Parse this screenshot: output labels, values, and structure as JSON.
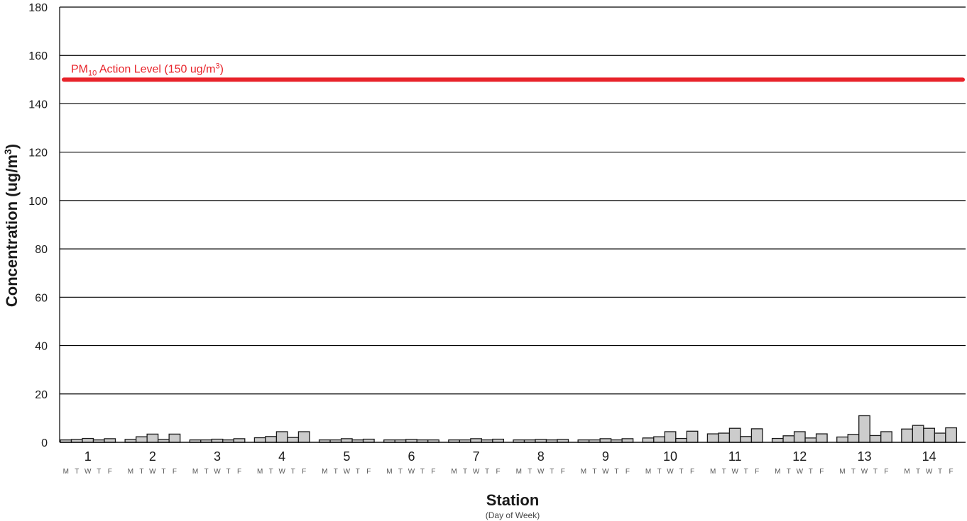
{
  "chart_data": {
    "type": "bar",
    "xlabel": "Station",
    "xlabel_sub": "(Day of Week)",
    "ylabel_main": "Concentration (ug/m",
    "ylabel_sup": "3",
    "ylabel_end": ")",
    "ylim": [
      0,
      180
    ],
    "yticks": [
      0,
      20,
      40,
      60,
      80,
      100,
      120,
      140,
      160,
      180
    ],
    "grid": true,
    "categories": [
      "1",
      "2",
      "3",
      "4",
      "5",
      "6",
      "7",
      "8",
      "9",
      "10",
      "11",
      "12",
      "13",
      "14"
    ],
    "days": [
      "M",
      "T",
      "W",
      "T",
      "F"
    ],
    "series": [
      {
        "values": [
          [
            1.0,
            1.2,
            1.6,
            1.0,
            1.5
          ],
          [
            1.2,
            2.3,
            3.4,
            1.2,
            3.4
          ],
          [
            1.0,
            1.0,
            1.3,
            1.0,
            1.5
          ],
          [
            1.9,
            2.4,
            4.4,
            2.0,
            4.4
          ],
          [
            1.0,
            1.0,
            1.5,
            1.0,
            1.3
          ],
          [
            1.0,
            1.0,
            1.2,
            1.0,
            1.0
          ],
          [
            1.0,
            1.0,
            1.5,
            1.0,
            1.3
          ],
          [
            1.0,
            1.0,
            1.2,
            1.0,
            1.2
          ],
          [
            1.0,
            1.0,
            1.5,
            1.0,
            1.5
          ],
          [
            1.8,
            2.3,
            4.4,
            1.6,
            4.6
          ],
          [
            3.5,
            3.8,
            5.8,
            2.4,
            5.6
          ],
          [
            1.6,
            2.7,
            4.4,
            1.8,
            3.5
          ],
          [
            2.2,
            3.3,
            11.0,
            2.8,
            4.4
          ],
          [
            5.5,
            7.0,
            5.8,
            3.8,
            6.0
          ]
        ]
      }
    ],
    "reference_line": {
      "value": 150,
      "label_prefix": "PM",
      "label_sub": "10",
      "label_mid": " Action Level (150 ug/m",
      "label_sup": "3",
      "label_end": ")"
    },
    "colors": {
      "bar_fill": "#cccccc",
      "bar_stroke": "#1a1a1a",
      "grid": "#000000",
      "reference": "#e8232a",
      "text": "#1a1a1a"
    }
  }
}
